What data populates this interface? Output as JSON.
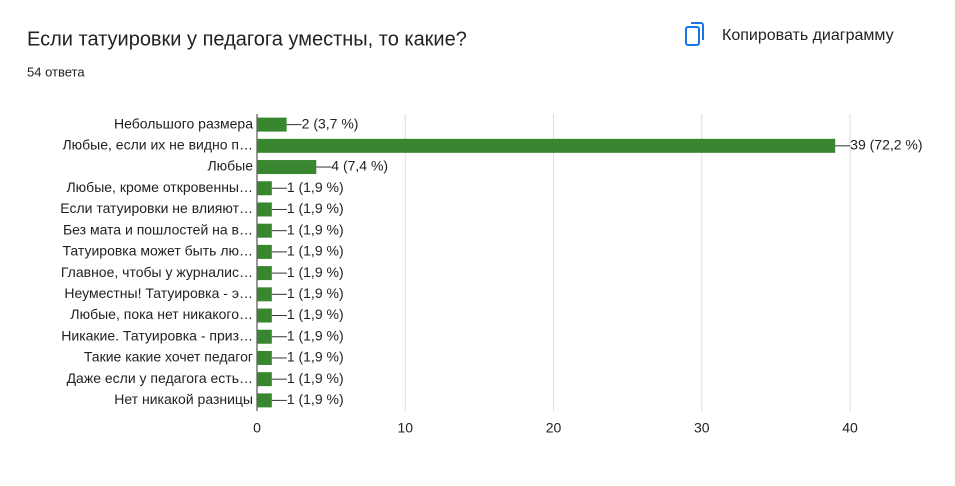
{
  "copy_button": "Копировать диаграмму",
  "chart_data": {
    "type": "bar",
    "orientation": "horizontal",
    "title": "Если татуировки у педагога уместны, то какие?",
    "subtitle": "54 ответа",
    "categories": [
      "Небольшого размера",
      "Любые, если их не видно п…",
      "Любые",
      "Любые, кроме откровенны…",
      "Если татуировки не влияют…",
      "Без мата и пошлостей на в…",
      "Татуировка может быть лю…",
      "Главное, чтобы у журналис…",
      "Неуместны! Татуировка - э…",
      "Любые, пока нет никакого…",
      "Никакие. Татуировка - приз…",
      "Такие какие хочет педагог",
      "Даже если у педагога есть…",
      "Нет никакой разницы"
    ],
    "values": [
      2,
      39,
      4,
      1,
      1,
      1,
      1,
      1,
      1,
      1,
      1,
      1,
      1,
      1
    ],
    "value_labels": [
      "2 (3,7 %)",
      "39 (72,2 %)",
      "4 (7,4 %)",
      "1 (1,9 %)",
      "1 (1,9 %)",
      "1 (1,9 %)",
      "1 (1,9 %)",
      "1 (1,9 %)",
      "1 (1,9 %)",
      "1 (1,9 %)",
      "1 (1,9 %)",
      "1 (1,9 %)",
      "1 (1,9 %)",
      "1 (1,9 %)"
    ],
    "color": "#38862f",
    "xlim": [
      0,
      40
    ],
    "xticks": [
      0,
      10,
      20,
      30,
      40
    ],
    "grid": true
  }
}
